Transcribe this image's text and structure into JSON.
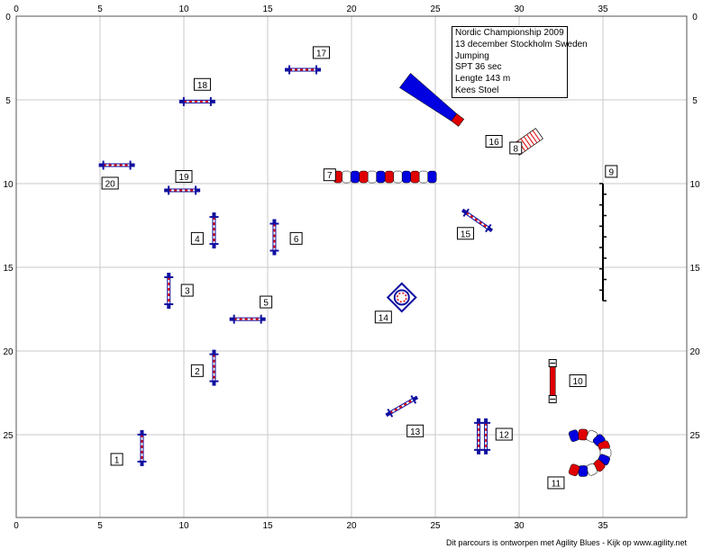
{
  "info": {
    "title": "Nordic Championship 2009",
    "event": "13 december Stockholm Sweden",
    "class": "Jumping",
    "spt": "SPT 36 sec",
    "length": "Lengte 143 m",
    "judge": "Kees Stoel"
  },
  "footer": "Dit parcours is ontworpen met Agility Blues - Kijk op www.agility.net",
  "axes": {
    "x_ticks": [
      "0",
      "5",
      "10",
      "15",
      "20",
      "25",
      "30",
      "35"
    ],
    "y_ticks": [
      "0",
      "5",
      "10",
      "15",
      "20",
      "25"
    ],
    "x_range": [
      0,
      40
    ],
    "y_range": [
      0,
      30
    ]
  },
  "colors": {
    "grid": "#c8c8c8",
    "bar_blue": "#1010a0",
    "bar_red": "#e00000",
    "tunnel_blue": "#0000e0",
    "tunnel_red": "#e00000"
  },
  "obstacles": [
    {
      "num": "1",
      "type": "jump-vertical",
      "x": 7.5,
      "y": 25.8,
      "label_x": 6.0,
      "label_y": 26.5
    },
    {
      "num": "2",
      "type": "jump-vertical",
      "x": 11.8,
      "y": 21.0,
      "label_x": 10.8,
      "label_y": 21.2
    },
    {
      "num": "3",
      "type": "jump-vertical",
      "x": 9.1,
      "y": 16.4,
      "label_x": 10.2,
      "label_y": 16.4
    },
    {
      "num": "4",
      "type": "jump-vertical",
      "x": 11.8,
      "y": 12.8,
      "label_x": 10.8,
      "label_y": 13.3
    },
    {
      "num": "5",
      "type": "jump-horizontal",
      "x": 13.8,
      "y": 18.1,
      "label_x": 14.9,
      "label_y": 17.1
    },
    {
      "num": "6",
      "type": "jump-vertical",
      "x": 15.4,
      "y": 13.2,
      "label_x": 16.7,
      "label_y": 13.3
    },
    {
      "num": "7",
      "type": "weave-tunnel",
      "x": 22.0,
      "y": 9.6,
      "label_x": 18.7,
      "label_y": 9.5
    },
    {
      "num": "8",
      "type": "table-ladder",
      "x": 30.5,
      "y": 7.5,
      "label_x": 29.8,
      "label_y": 7.9
    },
    {
      "num": "9",
      "type": "weave-poles",
      "x": 35.0,
      "y": 13.5,
      "label_x": 35.5,
      "label_y": 9.3
    },
    {
      "num": "10",
      "type": "wall",
      "x": 32.0,
      "y": 21.8,
      "label_x": 33.5,
      "label_y": 21.8
    },
    {
      "num": "11",
      "type": "tunnel-curved",
      "x": 34.3,
      "y": 26.3,
      "label_x": 32.2,
      "label_y": 27.9
    },
    {
      "num": "12",
      "type": "jump-double",
      "x": 27.8,
      "y": 25.1,
      "label_x": 29.1,
      "label_y": 25.0
    },
    {
      "num": "13",
      "type": "jump-diagonal",
      "x": 23.0,
      "y": 23.3,
      "label_x": 23.8,
      "label_y": 24.8
    },
    {
      "num": "14",
      "type": "tire",
      "x": 23.0,
      "y": 16.8,
      "label_x": 21.9,
      "label_y": 18.0
    },
    {
      "num": "15",
      "type": "jump-diagonal",
      "x": 27.5,
      "y": 12.2,
      "label_x": 26.8,
      "label_y": 13.0
    },
    {
      "num": "16",
      "type": "tunnel-straight",
      "x": 25.0,
      "y": 5.2,
      "label_x": 28.5,
      "label_y": 7.5
    },
    {
      "num": "17",
      "type": "jump-horizontal",
      "x": 17.1,
      "y": 3.2,
      "label_x": 18.2,
      "label_y": 2.2
    },
    {
      "num": "18",
      "type": "jump-horizontal",
      "x": 10.8,
      "y": 5.1,
      "label_x": 11.1,
      "label_y": 4.1
    },
    {
      "num": "19",
      "type": "jump-horizontal",
      "x": 9.9,
      "y": 10.4,
      "label_x": 10.0,
      "label_y": 9.6
    },
    {
      "num": "20",
      "type": "jump-horizontal",
      "x": 6.0,
      "y": 8.9,
      "label_x": 5.6,
      "label_y": 10.0
    }
  ]
}
